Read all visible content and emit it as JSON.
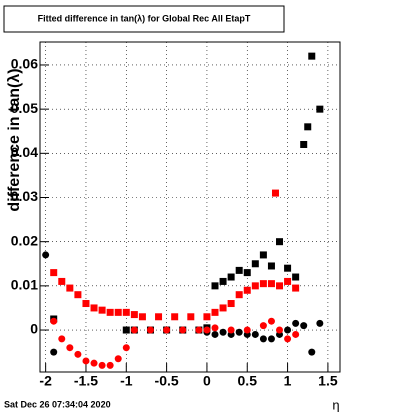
{
  "chart_data": {
    "type": "scatter",
    "title": "Fitted difference in tan(λ) for Global Rec All EtapT",
    "ylabel": "difference in tan(λ)",
    "xlabel": "η",
    "footer": "Sat Dec 26 07:34:04 2020",
    "xlim": [
      -2.07,
      1.65
    ],
    "ylim": [
      -0.0095,
      0.0652
    ],
    "xticks": [
      -2,
      -1.5,
      -1,
      -0.5,
      0,
      0.5,
      1,
      1.5
    ],
    "yticks": [
      0,
      0.01,
      0.02,
      0.03,
      0.04,
      0.05,
      0.06
    ],
    "grid": true,
    "series": [
      {
        "color": "#000000",
        "marker": "square",
        "x": [
          -1.9,
          -1.0,
          -0.9,
          -0.7,
          -0.5,
          -0.3,
          -0.1,
          0.0,
          0.1,
          0.2,
          0.3,
          0.4,
          0.5,
          0.6,
          0.7,
          0.8,
          0.9,
          1.0,
          1.1,
          1.2,
          1.25,
          1.3,
          1.4
        ],
        "values": [
          0.0025,
          0.0,
          0.0,
          0.0,
          0.0,
          0.0,
          0.0,
          0.0005,
          0.01,
          0.011,
          0.012,
          0.0135,
          0.013,
          0.015,
          0.017,
          0.0145,
          0.02,
          0.014,
          0.012,
          0.042,
          0.046,
          0.062,
          0.05
        ]
      },
      {
        "color": "#000000",
        "marker": "circle",
        "x": [
          -2.0,
          -1.9,
          0.0,
          0.1,
          0.2,
          0.3,
          0.4,
          0.5,
          0.6,
          0.7,
          0.8,
          0.9,
          1.0,
          1.1,
          1.2,
          1.3,
          1.4
        ],
        "values": [
          0.017,
          -0.005,
          -0.0005,
          -0.001,
          -0.0005,
          -0.001,
          -0.0005,
          -0.001,
          -0.001,
          -0.002,
          -0.002,
          -0.001,
          0.0,
          0.0015,
          0.001,
          -0.005,
          0.0015
        ]
      },
      {
        "color": "#ff0000",
        "marker": "square",
        "x": [
          -1.9,
          -1.8,
          -1.7,
          -1.6,
          -1.5,
          -1.4,
          -1.3,
          -1.2,
          -1.1,
          -1.0,
          -0.9,
          -0.8,
          -0.6,
          -0.4,
          -0.2,
          0.0,
          0.1,
          0.2,
          0.3,
          0.4,
          0.5,
          0.6,
          0.7,
          0.8,
          0.85,
          0.9,
          1.0,
          1.1
        ],
        "values": [
          0.013,
          0.011,
          0.0095,
          0.008,
          0.006,
          0.005,
          0.0045,
          0.004,
          0.004,
          0.004,
          0.0035,
          0.003,
          0.003,
          0.003,
          0.003,
          0.003,
          0.004,
          0.005,
          0.006,
          0.008,
          0.009,
          0.01,
          0.0105,
          0.0105,
          0.031,
          0.01,
          0.011,
          0.0095
        ]
      },
      {
        "color": "#ff0000",
        "marker": "circle",
        "x": [
          -1.9,
          -1.8,
          -1.7,
          -1.6,
          -1.5,
          -1.4,
          -1.3,
          -1.2,
          -1.1,
          -1.0,
          -0.9,
          -0.7,
          -0.5,
          -0.3,
          -0.1,
          0.0,
          0.1,
          0.3,
          0.5,
          0.7,
          0.8,
          0.9,
          1.0,
          1.1
        ],
        "values": [
          0.002,
          -0.002,
          -0.004,
          -0.0055,
          -0.007,
          -0.0075,
          -0.008,
          -0.008,
          -0.0065,
          -0.004,
          0.0,
          0.0,
          0.0,
          0.0,
          0.0,
          0.0,
          0.0005,
          0.0,
          0.0,
          0.001,
          0.002,
          0.0,
          -0.002,
          -0.001
        ]
      }
    ]
  }
}
